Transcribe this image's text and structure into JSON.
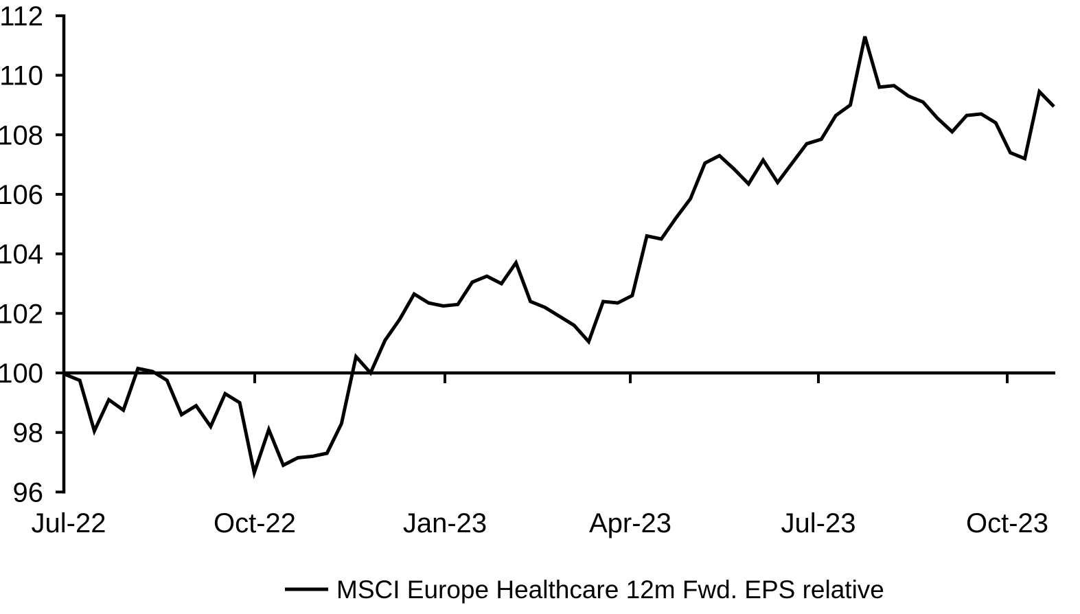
{
  "chart_data": {
    "type": "line",
    "title": "",
    "xlabel": "",
    "ylabel": "",
    "grid": "off",
    "legend_position": "bottom-center",
    "ylim": [
      96,
      112
    ],
    "y_tick_labels": [
      "96",
      "98",
      "100",
      "102",
      "104",
      "106",
      "108",
      "110",
      "112"
    ],
    "x_tick_labels": [
      "Jul-22",
      "Oct-22",
      "Jan-23",
      "Apr-23",
      "Jul-23",
      "Oct-23"
    ],
    "x_axis_crosses_at": 100,
    "line_color": "#000000",
    "axis_color": "#000000",
    "series": [
      {
        "name": "MSCI Europe Healthcare 12m Fwd. EPS relative",
        "color": "#000000",
        "values": [
          99.95,
          99.75,
          98.05,
          99.1,
          98.75,
          100.15,
          100.05,
          99.75,
          98.6,
          98.9,
          98.2,
          99.3,
          99.0,
          96.65,
          98.1,
          96.9,
          97.15,
          97.2,
          97.3,
          98.3,
          100.55,
          100.0,
          101.1,
          101.8,
          102.65,
          102.35,
          102.25,
          102.3,
          103.05,
          103.25,
          103.0,
          103.7,
          102.4,
          102.2,
          101.9,
          101.6,
          101.05,
          102.4,
          102.35,
          102.6,
          104.6,
          104.5,
          105.2,
          105.85,
          107.05,
          107.3,
          106.85,
          106.35,
          107.15,
          106.4,
          107.05,
          107.7,
          107.85,
          108.65,
          109.0,
          111.3,
          109.6,
          109.65,
          109.3,
          109.1,
          108.55,
          108.1,
          108.65,
          108.7,
          108.4,
          107.4,
          107.2,
          109.45,
          108.95
        ]
      }
    ]
  },
  "legend": {
    "label": "MSCI Europe Healthcare 12m Fwd. EPS relative"
  }
}
